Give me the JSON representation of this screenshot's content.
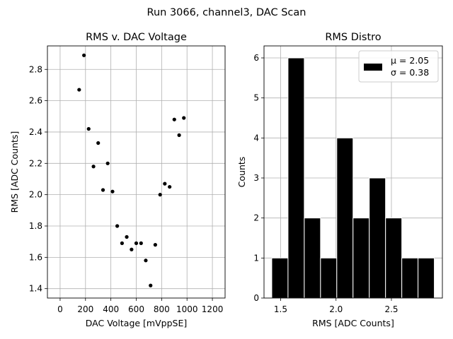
{
  "figure_title": "Run 3066, channel3, DAC Scan",
  "colors": {
    "marker": "#000000",
    "bar_fill": "#000000",
    "bar_edge": "#ffffff",
    "grid": "#b0b0b0",
    "background": "#ffffff"
  },
  "chart_data": [
    {
      "type": "scatter",
      "title": "RMS v. DAC Voltage",
      "xlabel": "DAC Voltage [mVppSE]",
      "ylabel": "RMS [ADC Counts]",
      "xlim": [
        -100,
        1300
      ],
      "ylim": [
        1.34,
        2.95
      ],
      "xticks": [
        0,
        200,
        400,
        600,
        800,
        1000,
        1200
      ],
      "xtick_labels": [
        "0",
        "200",
        "400",
        "600",
        "800",
        "1000",
        "1200"
      ],
      "yticks": [
        1.4,
        1.6,
        1.8,
        2.0,
        2.2,
        2.4,
        2.6,
        2.8
      ],
      "ytick_labels": [
        "1.4",
        "1.6",
        "1.8",
        "2.0",
        "2.2",
        "2.4",
        "2.6",
        "2.8"
      ],
      "grid": true,
      "x": [
        150,
        188,
        225,
        263,
        300,
        338,
        375,
        413,
        450,
        488,
        525,
        563,
        600,
        638,
        675,
        713,
        750,
        788,
        825,
        863,
        900,
        938,
        975
      ],
      "y": [
        2.67,
        2.89,
        2.42,
        2.18,
        2.33,
        2.03,
        2.2,
        2.02,
        1.8,
        1.69,
        1.73,
        1.65,
        1.69,
        1.69,
        1.58,
        1.42,
        1.68,
        2.0,
        2.07,
        2.05,
        2.48,
        2.38,
        2.49
      ]
    },
    {
      "type": "bar",
      "title": "RMS Distro",
      "xlabel": "RMS [ADC Counts]",
      "ylabel": "Counts",
      "xlim": [
        1.35,
        2.96
      ],
      "ylim": [
        0,
        6.3
      ],
      "xticks": [
        1.5,
        2.0,
        2.5
      ],
      "xtick_labels": [
        "1.5",
        "2.0",
        "2.5"
      ],
      "yticks": [
        0,
        1,
        2,
        3,
        4,
        5,
        6
      ],
      "ytick_labels": [
        "0",
        "1",
        "2",
        "3",
        "4",
        "5",
        "6"
      ],
      "grid": true,
      "bin_start": 1.42,
      "bin_width": 0.1467,
      "counts": [
        1,
        6,
        2,
        1,
        4,
        2,
        3,
        2,
        1,
        1
      ],
      "legend": {
        "placement": "top-right",
        "mu_label": "μ = 2.05",
        "sigma_label": "σ = 0.38"
      }
    }
  ]
}
